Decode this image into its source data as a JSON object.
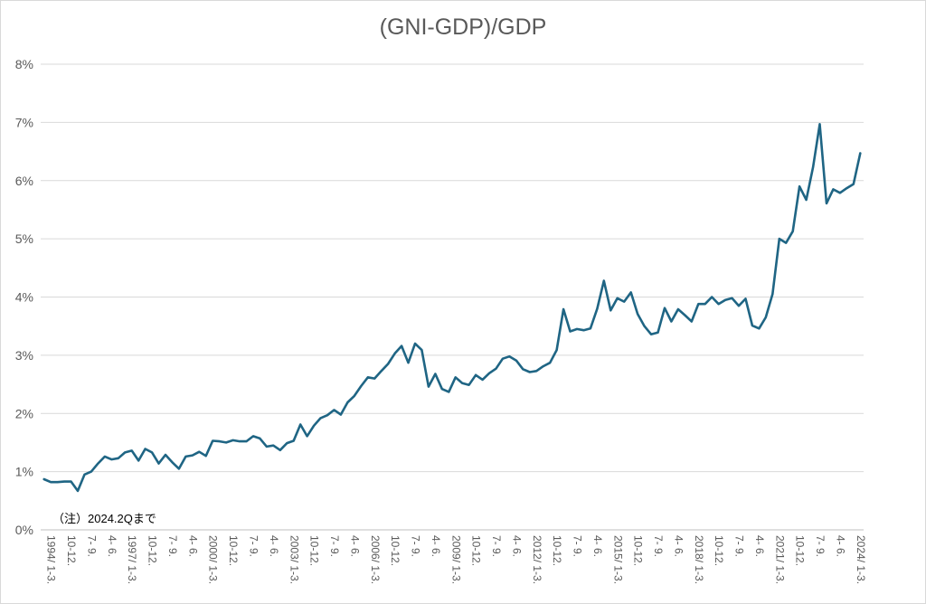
{
  "chart_data": {
    "type": "line",
    "title": "(GNI-GDP)/GDP",
    "note": "（注）2024.2Qまで",
    "yticks": [
      "0%",
      "1%",
      "2%",
      "3%",
      "4%",
      "5%",
      "6%",
      "7%",
      "8%"
    ],
    "ylim": [
      0,
      8
    ],
    "grid": true,
    "line_color": "#1f6584",
    "x_labels": [
      "1994/ 1-3.",
      "10-12.",
      "7- 9.",
      "4- 6.",
      "1997/ 1-3.",
      "10-12.",
      "7- 9.",
      "4- 6.",
      "2000/ 1-3.",
      "10-12.",
      "7- 9.",
      "4- 6.",
      "2003/ 1-3.",
      "10-12.",
      "7- 9.",
      "4- 6.",
      "2006/ 1-3.",
      "10-12.",
      "7- 9.",
      "4- 6.",
      "2009/ 1-3.",
      "10-12.",
      "7- 9.",
      "4- 6.",
      "2012/ 1-3.",
      "10-12.",
      "7- 9.",
      "4- 6.",
      "2015/ 1-3.",
      "10-12.",
      "7- 9.",
      "4- 6.",
      "2018/ 1-3.",
      "10-12.",
      "7- 9.",
      "4- 6.",
      "2021/ 1-3.",
      "10-12.",
      "7- 9.",
      "4- 6.",
      "2024/ 1-3."
    ],
    "values": [
      0.87,
      0.82,
      0.82,
      0.83,
      0.83,
      0.67,
      0.95,
      1.0,
      1.14,
      1.26,
      1.21,
      1.23,
      1.33,
      1.36,
      1.19,
      1.39,
      1.33,
      1.14,
      1.29,
      1.16,
      1.05,
      1.26,
      1.28,
      1.34,
      1.27,
      1.53,
      1.52,
      1.5,
      1.54,
      1.52,
      1.52,
      1.61,
      1.57,
      1.43,
      1.45,
      1.37,
      1.49,
      1.53,
      1.81,
      1.61,
      1.79,
      1.92,
      1.97,
      2.06,
      1.98,
      2.19,
      2.3,
      2.47,
      2.62,
      2.6,
      2.73,
      2.85,
      3.03,
      3.16,
      2.87,
      3.2,
      3.09,
      2.46,
      2.68,
      2.42,
      2.37,
      2.62,
      2.52,
      2.49,
      2.66,
      2.58,
      2.69,
      2.77,
      2.94,
      2.98,
      2.91,
      2.76,
      2.71,
      2.73,
      2.81,
      2.87,
      3.09,
      3.79,
      3.41,
      3.45,
      3.43,
      3.46,
      3.8,
      4.28,
      3.77,
      3.98,
      3.92,
      4.08,
      3.71,
      3.5,
      3.36,
      3.39,
      3.81,
      3.58,
      3.79,
      3.69,
      3.58,
      3.88,
      3.88,
      4.0,
      3.88,
      3.95,
      3.98,
      3.85,
      3.97,
      3.51,
      3.46,
      3.65,
      4.05,
      5.0,
      4.93,
      5.13,
      5.9,
      5.67,
      6.23,
      6.97,
      5.61,
      5.85,
      5.79,
      5.87,
      5.94,
      6.47
    ]
  }
}
